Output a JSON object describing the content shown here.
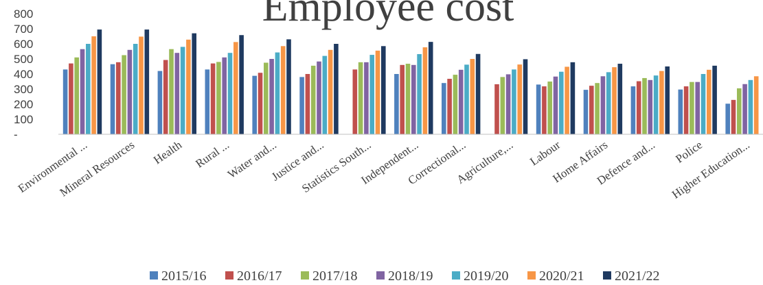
{
  "chart_data": {
    "type": "bar",
    "title": "Employee cost",
    "categories": [
      "Environmental ...",
      "Mineral Resources",
      "Health",
      "Rural ...",
      "Water and...",
      "Justice and...",
      "Statistics South...",
      "Independent...",
      "Correctional...",
      "Agriculture,...",
      "Labour",
      "Home Affairs",
      "Defence and...",
      "Police",
      "Higher Education..."
    ],
    "series": [
      {
        "name": "2015/16",
        "color": "#4f81bd",
        "values": [
          430,
          465,
          420,
          430,
          388,
          380,
          null,
          400,
          340,
          null,
          330,
          295,
          318,
          297,
          203
        ]
      },
      {
        "name": "2016/17",
        "color": "#c0504d",
        "values": [
          470,
          478,
          493,
          470,
          408,
          400,
          430,
          460,
          368,
          332,
          318,
          322,
          352,
          318,
          228
        ]
      },
      {
        "name": "2017/18",
        "color": "#9bbb59",
        "values": [
          510,
          525,
          565,
          480,
          475,
          455,
          478,
          468,
          395,
          380,
          350,
          340,
          373,
          347,
          305
        ]
      },
      {
        "name": "2018/19",
        "color": "#8064a2",
        "values": [
          565,
          560,
          540,
          510,
          500,
          483,
          478,
          460,
          428,
          398,
          383,
          385,
          360,
          347,
          333
        ]
      },
      {
        "name": "2019/20",
        "color": "#4bacc6",
        "values": [
          600,
          600,
          580,
          540,
          543,
          520,
          527,
          532,
          462,
          430,
          415,
          412,
          390,
          400,
          360
        ]
      },
      {
        "name": "2020/21",
        "color": "#f79646",
        "values": [
          650,
          648,
          628,
          612,
          585,
          560,
          555,
          577,
          500,
          463,
          448,
          445,
          420,
          428,
          385
        ]
      },
      {
        "name": "2021/22",
        "color": "#1f3a60",
        "values": [
          695,
          695,
          670,
          658,
          630,
          600,
          585,
          613,
          533,
          498,
          478,
          468,
          450,
          455,
          null
        ]
      }
    ],
    "ylim": [
      0,
      800
    ],
    "yticks": [
      {
        "value": 0,
        "label": "-"
      },
      100,
      200,
      300,
      400,
      500,
      600,
      700,
      800
    ],
    "grid": false,
    "legend": "bottom"
  }
}
